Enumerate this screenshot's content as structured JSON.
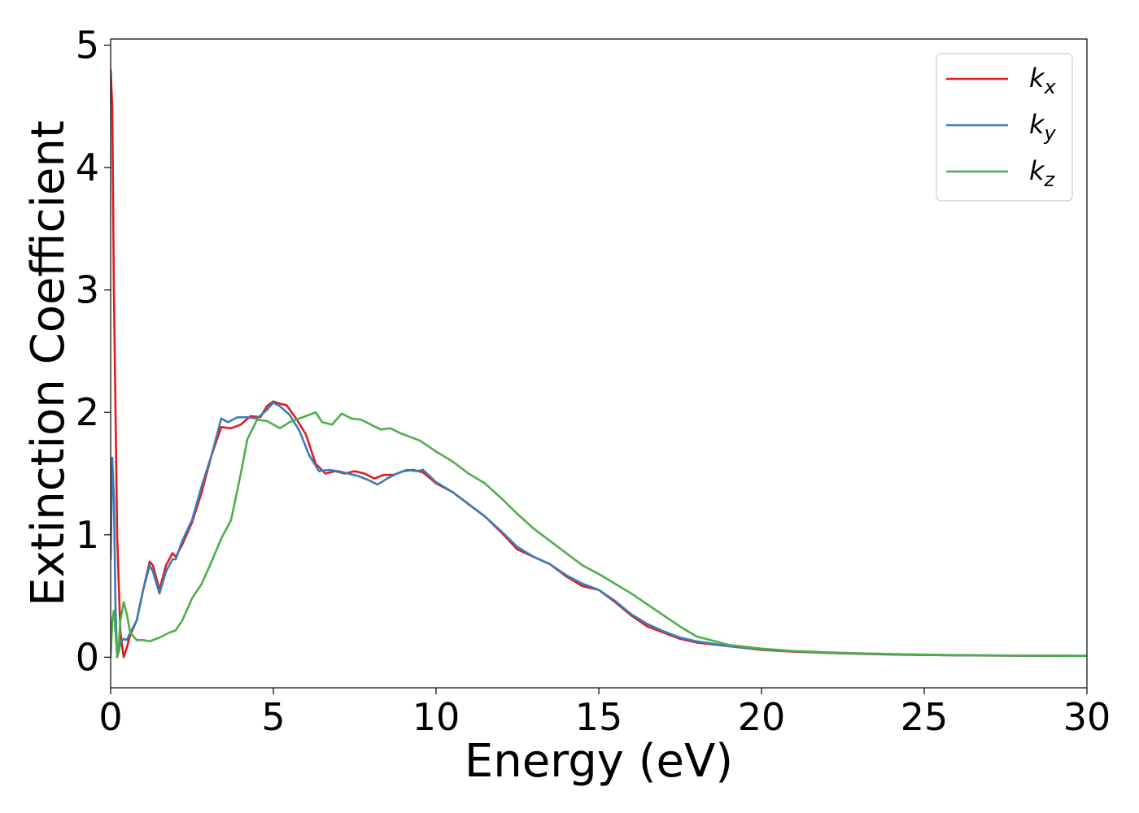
{
  "chart_data": {
    "type": "line",
    "xlabel": "Energy (eV)",
    "ylabel": "Extinction Coefficient",
    "xlim": [
      0,
      30
    ],
    "ylim": [
      -0.25,
      5.05
    ],
    "xticks": [
      "0",
      "5",
      "10",
      "15",
      "20",
      "25",
      "30"
    ],
    "yticks": [
      "0",
      "1",
      "2",
      "3",
      "4",
      "5"
    ],
    "grid": false,
    "legend_position": "top-right",
    "series": [
      {
        "name": "kx",
        "label_base": "k",
        "label_sub": "x",
        "color": "#e41a1c",
        "x": [
          0,
          0.05,
          0.1,
          0.2,
          0.3,
          0.4,
          0.5,
          0.6,
          0.8,
          1.0,
          1.2,
          1.3,
          1.5,
          1.7,
          1.9,
          2.0,
          2.2,
          2.5,
          2.8,
          3.1,
          3.4,
          3.7,
          4.0,
          4.3,
          4.6,
          4.8,
          5.0,
          5.2,
          5.4,
          5.7,
          6.0,
          6.3,
          6.6,
          6.9,
          7.2,
          7.5,
          7.8,
          8.1,
          8.4,
          8.7,
          9.0,
          9.3,
          9.6,
          10.0,
          10.5,
          11.0,
          11.5,
          12.0,
          12.5,
          13.0,
          13.5,
          14.0,
          14.5,
          15.0,
          15.5,
          16.0,
          16.5,
          17.0,
          17.5,
          18.0,
          19.0,
          20.0,
          21.0,
          22.0,
          23.0,
          24.0,
          25.0,
          26.0,
          28.0,
          30.0
        ],
        "y": [
          4.8,
          4.5,
          3.0,
          1.0,
          0.2,
          0.0,
          0.08,
          0.18,
          0.3,
          0.55,
          0.78,
          0.75,
          0.55,
          0.75,
          0.85,
          0.82,
          0.92,
          1.1,
          1.35,
          1.65,
          1.88,
          1.87,
          1.9,
          1.97,
          1.96,
          2.05,
          2.09,
          2.07,
          2.06,
          1.95,
          1.82,
          1.58,
          1.5,
          1.52,
          1.5,
          1.52,
          1.5,
          1.46,
          1.49,
          1.49,
          1.52,
          1.53,
          1.51,
          1.42,
          1.35,
          1.25,
          1.15,
          1.02,
          0.88,
          0.82,
          0.76,
          0.66,
          0.58,
          0.55,
          0.45,
          0.34,
          0.25,
          0.2,
          0.15,
          0.12,
          0.09,
          0.06,
          0.045,
          0.035,
          0.028,
          0.022,
          0.018,
          0.015,
          0.012,
          0.01
        ]
      },
      {
        "name": "ky",
        "label_base": "k",
        "label_sub": "y",
        "color": "#377eb8",
        "x": [
          0,
          0.05,
          0.1,
          0.15,
          0.2,
          0.25,
          0.3,
          0.4,
          0.5,
          0.6,
          0.8,
          1.0,
          1.2,
          1.3,
          1.5,
          1.7,
          1.9,
          2.0,
          2.2,
          2.5,
          2.8,
          3.1,
          3.4,
          3.6,
          3.9,
          4.2,
          4.5,
          4.8,
          5.0,
          5.2,
          5.5,
          5.8,
          6.1,
          6.4,
          6.7,
          7.0,
          7.3,
          7.6,
          7.9,
          8.2,
          8.5,
          8.8,
          9.1,
          9.4,
          9.6,
          10.0,
          10.5,
          11.0,
          11.5,
          12.0,
          12.5,
          13.0,
          13.5,
          14.0,
          14.5,
          15.0,
          15.5,
          16.0,
          16.5,
          17.0,
          17.5,
          18.0,
          19.0,
          20.0,
          21.0,
          22.0,
          23.0,
          24.0,
          25.0,
          26.0,
          28.0,
          30.0
        ],
        "y": [
          0.8,
          1.63,
          1.3,
          0.4,
          0.0,
          0.05,
          0.12,
          0.15,
          0.14,
          0.2,
          0.3,
          0.55,
          0.75,
          0.7,
          0.52,
          0.7,
          0.8,
          0.8,
          0.95,
          1.12,
          1.4,
          1.65,
          1.95,
          1.92,
          1.96,
          1.96,
          1.95,
          2.02,
          2.08,
          2.05,
          1.98,
          1.85,
          1.65,
          1.52,
          1.53,
          1.52,
          1.5,
          1.48,
          1.45,
          1.41,
          1.46,
          1.5,
          1.53,
          1.52,
          1.53,
          1.43,
          1.35,
          1.25,
          1.15,
          1.03,
          0.9,
          0.82,
          0.76,
          0.67,
          0.6,
          0.55,
          0.46,
          0.35,
          0.27,
          0.21,
          0.16,
          0.13,
          0.09,
          0.065,
          0.048,
          0.037,
          0.03,
          0.024,
          0.019,
          0.016,
          0.013,
          0.011
        ]
      },
      {
        "name": "kz",
        "label_base": "k",
        "label_sub": "z",
        "color": "#4daf4a",
        "x": [
          0,
          0.05,
          0.1,
          0.15,
          0.2,
          0.25,
          0.3,
          0.4,
          0.5,
          0.6,
          0.8,
          1.0,
          1.2,
          1.5,
          1.8,
          2.0,
          2.2,
          2.5,
          2.8,
          3.1,
          3.4,
          3.7,
          4.0,
          4.2,
          4.5,
          4.8,
          5.0,
          5.2,
          5.5,
          5.8,
          6.0,
          6.3,
          6.5,
          6.8,
          7.1,
          7.4,
          7.7,
          8.0,
          8.3,
          8.6,
          8.9,
          9.2,
          9.5,
          10.0,
          10.5,
          11.0,
          11.5,
          12.0,
          12.5,
          13.0,
          13.5,
          14.0,
          14.5,
          15.0,
          15.5,
          16.0,
          16.5,
          17.0,
          17.5,
          18.0,
          19.0,
          20.0,
          21.0,
          22.0,
          23.0,
          24.0,
          25.0,
          26.0,
          28.0,
          30.0
        ],
        "y": [
          0.0,
          0.3,
          0.38,
          0.2,
          0.0,
          0.1,
          0.3,
          0.45,
          0.35,
          0.2,
          0.14,
          0.14,
          0.13,
          0.16,
          0.2,
          0.22,
          0.3,
          0.48,
          0.6,
          0.78,
          0.97,
          1.12,
          1.5,
          1.78,
          1.94,
          1.93,
          1.9,
          1.87,
          1.92,
          1.95,
          1.97,
          2.0,
          1.92,
          1.9,
          1.99,
          1.95,
          1.94,
          1.9,
          1.86,
          1.87,
          1.83,
          1.8,
          1.77,
          1.68,
          1.6,
          1.5,
          1.42,
          1.3,
          1.17,
          1.05,
          0.95,
          0.85,
          0.75,
          0.68,
          0.6,
          0.52,
          0.43,
          0.34,
          0.25,
          0.17,
          0.1,
          0.07,
          0.05,
          0.04,
          0.032,
          0.026,
          0.021,
          0.017,
          0.013,
          0.011
        ]
      }
    ]
  }
}
